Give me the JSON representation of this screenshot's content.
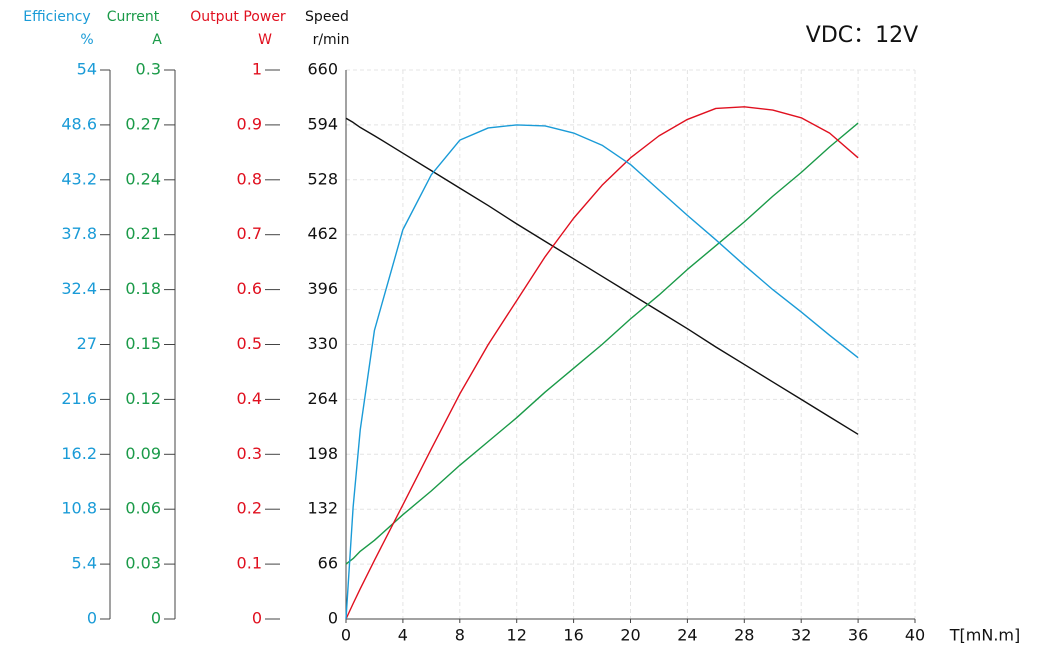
{
  "chart_data": {
    "type": "line",
    "annotation": "VDC：12V",
    "xlabel": "T[mN.m]",
    "xlim": [
      0,
      40
    ],
    "xticks": [
      0,
      4,
      8,
      12,
      16,
      20,
      24,
      28,
      32,
      36,
      40
    ],
    "grid": true,
    "ylabel": "Speed",
    "yunit": "r/min",
    "ylim": [
      0,
      660
    ],
    "yticks": [
      0,
      66,
      132,
      198,
      264,
      330,
      396,
      462,
      528,
      594,
      660
    ],
    "ycolor": "#111111",
    "y2label": "Current",
    "y2unit": "A",
    "y2lim": [
      0,
      0.3
    ],
    "y2ticks": [
      0,
      0.03,
      0.06,
      0.09,
      0.12,
      0.15,
      0.18,
      0.21,
      0.24,
      0.27,
      0.3
    ],
    "y2color": "#1a9a48",
    "y3label": "Output Power",
    "y3unit": "W",
    "y3lim": [
      0,
      1
    ],
    "y3ticks": [
      0,
      0.1,
      0.2,
      0.3,
      0.4,
      0.5,
      0.6,
      0.7,
      0.8,
      0.9,
      1
    ],
    "y3color": "#e0101f",
    "y4label": "Efficiency",
    "y4unit": "%",
    "y4lim": [
      0,
      54
    ],
    "y4ticks": [
      0,
      5.4,
      10.8,
      16.2,
      21.6,
      27,
      32.4,
      37.8,
      43.2,
      48.6,
      54
    ],
    "y4color": "#1a9bd7",
    "x": [
      0,
      0.5,
      1,
      2,
      4,
      6,
      8,
      10,
      12,
      14,
      16,
      18,
      20,
      22,
      24,
      26,
      28,
      30,
      32,
      34,
      36
    ],
    "series": [
      {
        "axis": "y",
        "color": "#111111",
        "values": [
          602,
          597,
          591,
          581,
          560,
          539,
          518,
          497,
          475,
          454,
          433,
          412,
          391,
          370,
          349,
          327,
          306,
          285,
          264,
          243,
          222
        ]
      },
      {
        "axis": "y2",
        "color": "#1a9a48",
        "values": [
          0.03,
          0.033,
          0.037,
          0.043,
          0.057,
          0.07,
          0.084,
          0.097,
          0.11,
          0.124,
          0.137,
          0.15,
          0.164,
          0.177,
          0.191,
          0.204,
          0.217,
          0.231,
          0.244,
          0.258,
          0.271
        ]
      },
      {
        "axis": "y3",
        "color": "#e0101f",
        "values": [
          0,
          0.028,
          0.055,
          0.107,
          0.208,
          0.31,
          0.41,
          0.5,
          0.58,
          0.66,
          0.73,
          0.79,
          0.84,
          0.88,
          0.91,
          0.93,
          0.933,
          0.927,
          0.913,
          0.885,
          0.84
        ]
      },
      {
        "axis": "y4",
        "color": "#1a9bd7",
        "values": [
          0,
          11,
          18.6,
          28.4,
          38.3,
          43.7,
          47.1,
          48.3,
          48.6,
          48.5,
          47.8,
          46.6,
          44.7,
          42.2,
          39.7,
          37.3,
          34.8,
          32.4,
          30.2,
          27.9,
          25.7
        ]
      }
    ]
  }
}
